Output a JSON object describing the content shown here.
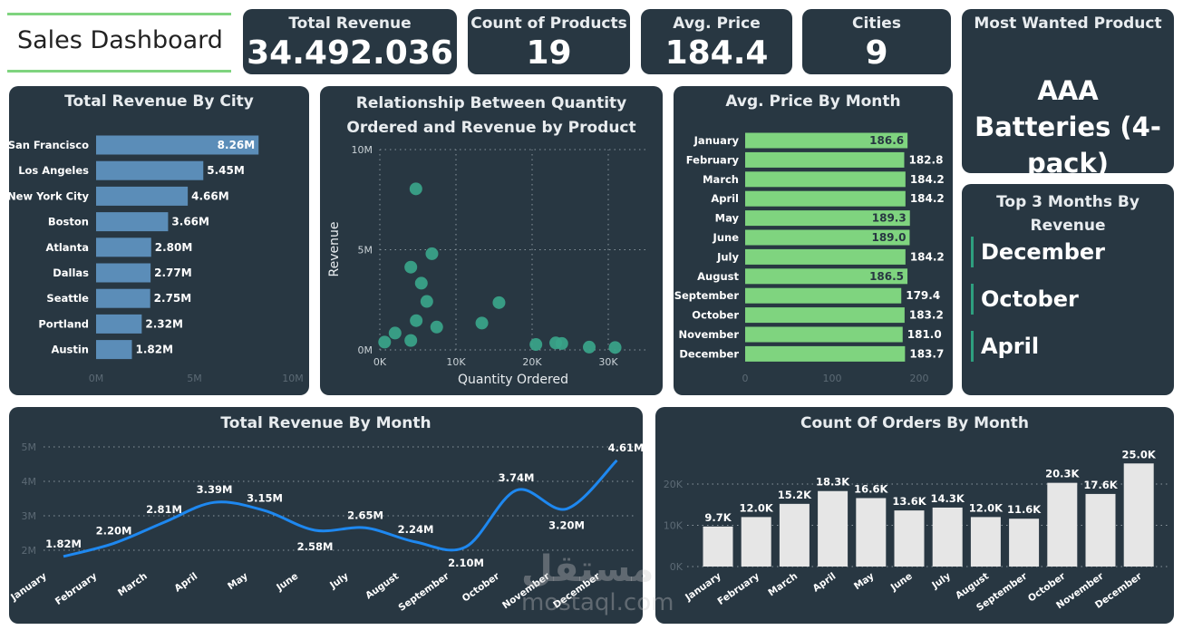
{
  "title": "Sales Dashboard",
  "kpis": {
    "total_revenue": {
      "label": "Total Revenue",
      "value": "34.492.036"
    },
    "count_products": {
      "label": "Count of Products",
      "value": "19"
    },
    "avg_price": {
      "label": "Avg. Price",
      "value": "184.4"
    },
    "cities": {
      "label": "Cities",
      "value": "9"
    },
    "most_wanted": {
      "label": "Most Wanted Product",
      "value": "AAA Batteries (4-pack)"
    }
  },
  "top3": {
    "title": "Top 3 Months By Revenue",
    "items": [
      "December",
      "October",
      "April"
    ],
    "accent": "#2e9f7f"
  },
  "watermark": {
    "arabic": "مستقل",
    "latin": "mostaql.com"
  },
  "chart_data": [
    {
      "id": "city",
      "type": "bar",
      "orientation": "horizontal",
      "title": "Total Revenue By City",
      "color": "#5b8db8",
      "categories": [
        "San Francisco",
        "Los Angeles",
        "New York City",
        "Boston",
        "Atlanta",
        "Dallas",
        "Seattle",
        "Portland",
        "Austin"
      ],
      "values": [
        8.26,
        5.45,
        4.66,
        3.66,
        2.8,
        2.77,
        2.75,
        2.32,
        1.82
      ],
      "labels": [
        "8.26M",
        "5.45M",
        "4.66M",
        "3.66M",
        "2.80M",
        "2.77M",
        "2.75M",
        "2.32M",
        "1.82M"
      ],
      "xlim": [
        0,
        10
      ],
      "ticks": [
        "0M",
        "5M",
        "10M"
      ]
    },
    {
      "id": "scatter",
      "type": "scatter",
      "title": "Relationship Between Quantity Ordered and Revenue by Product",
      "xlabel": "Quantity Ordered",
      "ylabel": "Revenue",
      "color": "#3aa58a",
      "grid": true,
      "xlim": [
        0,
        35
      ],
      "ylim": [
        0,
        10
      ],
      "xticks": [
        "0K",
        "10K",
        "20K",
        "30K"
      ],
      "yticks": [
        "0M",
        "5M",
        "10M"
      ],
      "x": [
        4.74,
        6.84,
        4.07,
        5.45,
        6.17,
        15.65,
        4.78,
        13.4,
        7.47,
        2.0,
        0.63,
        4.07,
        20.5,
        23.1,
        23.9,
        27.5,
        30.9
      ],
      "y": [
        8.04,
        4.8,
        4.13,
        3.33,
        2.42,
        2.36,
        1.46,
        1.34,
        1.14,
        0.84,
        0.39,
        0.47,
        0.27,
        0.35,
        0.32,
        0.14,
        0.12
      ]
    },
    {
      "id": "avgprice",
      "type": "bar",
      "orientation": "horizontal",
      "title": "Avg. Price By Month",
      "color": "#7fd47f",
      "categories": [
        "January",
        "February",
        "March",
        "April",
        "May",
        "June",
        "July",
        "August",
        "September",
        "October",
        "November",
        "December"
      ],
      "values": [
        186.6,
        182.8,
        184.2,
        184.2,
        189.3,
        189.0,
        184.2,
        186.5,
        179.4,
        183.2,
        181.0,
        183.7
      ],
      "labels": [
        "186.6",
        "182.8",
        "184.2",
        "184.2",
        "189.3",
        "189.0",
        "184.2",
        "186.5",
        "179.4",
        "183.2",
        "181.0",
        "183.7"
      ],
      "xlim": [
        0,
        200
      ],
      "ticks": [
        "0",
        "100",
        "200"
      ]
    },
    {
      "id": "revmonth",
      "type": "line",
      "title": "Total Revenue By Month",
      "color": "#1e88f0",
      "categories": [
        "January",
        "February",
        "March",
        "April",
        "May",
        "June",
        "July",
        "August",
        "September",
        "October",
        "November",
        "December"
      ],
      "values": [
        1.82,
        2.2,
        2.81,
        3.39,
        3.15,
        2.58,
        2.65,
        2.24,
        2.1,
        3.74,
        3.2,
        4.61
      ],
      "labels": [
        "1.82M",
        "2.20M",
        "2.81M",
        "3.39M",
        "3.15M",
        "2.58M",
        "2.65M",
        "2.24M",
        "2.10M",
        "3.74M",
        "3.20M",
        "4.61M"
      ],
      "ylim": [
        2,
        5
      ],
      "yticks": [
        "2M",
        "3M",
        "4M",
        "5M"
      ],
      "grid": true
    },
    {
      "id": "orders",
      "type": "bar",
      "title": "Count Of Orders By Month",
      "color": "#e6e6e6",
      "categories": [
        "January",
        "February",
        "March",
        "April",
        "May",
        "June",
        "July",
        "August",
        "September",
        "October",
        "November",
        "December"
      ],
      "values": [
        9.7,
        12.0,
        15.2,
        18.3,
        16.6,
        13.6,
        14.3,
        12.0,
        11.6,
        20.3,
        17.6,
        25.0
      ],
      "labels": [
        "9.7K",
        "12.0K",
        "15.2K",
        "18.3K",
        "16.6K",
        "13.6K",
        "14.3K",
        "12.0K",
        "11.6K",
        "20.3K",
        "17.6K",
        "25.0K"
      ],
      "ylim": [
        0,
        25
      ],
      "yticks": [
        "0K",
        "10K",
        "20K"
      ],
      "grid": true
    }
  ]
}
